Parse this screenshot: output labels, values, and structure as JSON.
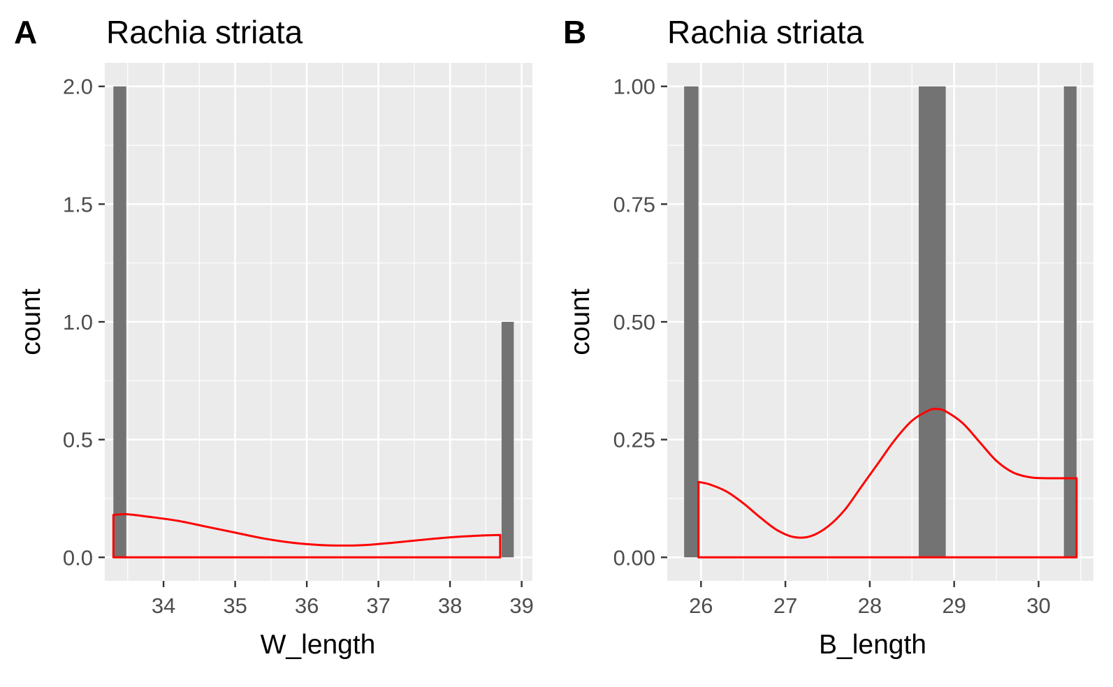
{
  "chart_data": [
    {
      "panel": "A",
      "type": "bar",
      "title": "Rachia striata",
      "xlabel": "W_length",
      "ylabel": "count",
      "xlim": [
        33.18,
        39.15
      ],
      "ylim": [
        -0.1,
        2.1
      ],
      "x_ticks": [
        34,
        35,
        36,
        37,
        38,
        39
      ],
      "y_ticks": [
        0.0,
        0.5,
        1.0,
        1.5,
        2.0
      ],
      "y_tick_labels": [
        "0.0",
        "0.5",
        "1.0",
        "1.5",
        "2.0"
      ],
      "bins": [
        {
          "x0": 33.3,
          "x1": 33.48,
          "count": 2
        },
        {
          "x0": 38.72,
          "x1": 38.89,
          "count": 1
        }
      ],
      "density": {
        "x": [
          33.3,
          33.48,
          33.8,
          34.2,
          34.6,
          35.0,
          35.4,
          35.8,
          36.2,
          36.5,
          36.8,
          37.2,
          37.6,
          38.0,
          38.4,
          38.7
        ],
        "scale": [
          0.18,
          0.183,
          0.172,
          0.155,
          0.13,
          0.105,
          0.08,
          0.062,
          0.052,
          0.05,
          0.052,
          0.062,
          0.074,
          0.085,
          0.092,
          0.095
        ]
      },
      "colors": {
        "bar": "#737373",
        "density": "#ff0000",
        "panel_bg": "#ebebeb",
        "grid": "#ffffff"
      },
      "grid": true
    },
    {
      "panel": "B",
      "type": "bar",
      "title": "Rachia striata",
      "xlabel": "B_length",
      "ylabel": "count",
      "xlim": [
        25.6,
        30.65
      ],
      "ylim": [
        -0.05,
        1.05
      ],
      "x_ticks": [
        26,
        27,
        28,
        29,
        30
      ],
      "y_ticks": [
        0.0,
        0.25,
        0.5,
        0.75,
        1.0
      ],
      "y_tick_labels": [
        "0.00",
        "0.25",
        "0.50",
        "0.75",
        "1.00"
      ],
      "bins": [
        {
          "x0": 25.8,
          "x1": 25.97,
          "count": 1
        },
        {
          "x0": 28.58,
          "x1": 28.9,
          "count": 1
        },
        {
          "x0": 30.3,
          "x1": 30.45,
          "count": 1
        }
      ],
      "density": {
        "x": [
          25.97,
          26.1,
          26.3,
          26.5,
          26.7,
          26.9,
          27.1,
          27.3,
          27.5,
          27.7,
          27.9,
          28.1,
          28.3,
          28.5,
          28.7,
          28.8,
          28.9,
          29.1,
          29.3,
          29.5,
          29.7,
          29.9,
          30.1,
          30.3,
          30.45
        ],
        "scale": [
          0.16,
          0.155,
          0.14,
          0.115,
          0.085,
          0.058,
          0.043,
          0.045,
          0.065,
          0.1,
          0.15,
          0.2,
          0.25,
          0.29,
          0.312,
          0.315,
          0.31,
          0.285,
          0.245,
          0.205,
          0.18,
          0.17,
          0.168,
          0.168,
          0.168
        ]
      },
      "colors": {
        "bar": "#737373",
        "density": "#ff0000",
        "panel_bg": "#ebebeb",
        "grid": "#ffffff"
      },
      "grid": true
    }
  ]
}
